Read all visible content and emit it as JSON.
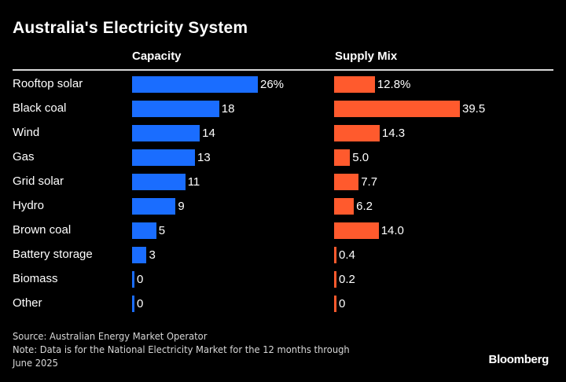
{
  "chart_data": {
    "type": "bar",
    "title": "Australia's Electricity System",
    "categories": [
      "Rooftop solar",
      "Black coal",
      "Wind",
      "Gas",
      "Grid solar",
      "Hydro",
      "Brown coal",
      "Battery storage",
      "Biomass",
      "Other"
    ],
    "series": [
      {
        "name": "Capacity",
        "unit": "%",
        "color": "#1a6dff",
        "values": [
          26,
          18,
          14,
          13,
          11,
          9,
          5,
          3,
          0,
          0
        ],
        "labels": [
          "26%",
          "18",
          "14",
          "13",
          "11",
          "9",
          "5",
          "3",
          "0",
          "0"
        ]
      },
      {
        "name": "Supply Mix",
        "unit": "%",
        "color": "#ff5a2d",
        "values": [
          12.8,
          39.5,
          14.3,
          5.0,
          7.7,
          6.2,
          14.0,
          0.4,
          0.2,
          0
        ],
        "labels": [
          "12.8%",
          "39.5",
          "14.3",
          "5.0",
          "7.7",
          "6.2",
          "14.0",
          "0.4",
          "0.2",
          "0"
        ]
      }
    ],
    "orientation": "horizontal",
    "xlabel": "",
    "ylabel": "",
    "grid": false,
    "legend": "none"
  },
  "footer": {
    "source": "Source: Australian Energy Market Operator",
    "note_line1": "Note: Data is for the National Electricity Market for the 12 months through",
    "note_line2": "June 2025",
    "brand": "Bloomberg"
  }
}
